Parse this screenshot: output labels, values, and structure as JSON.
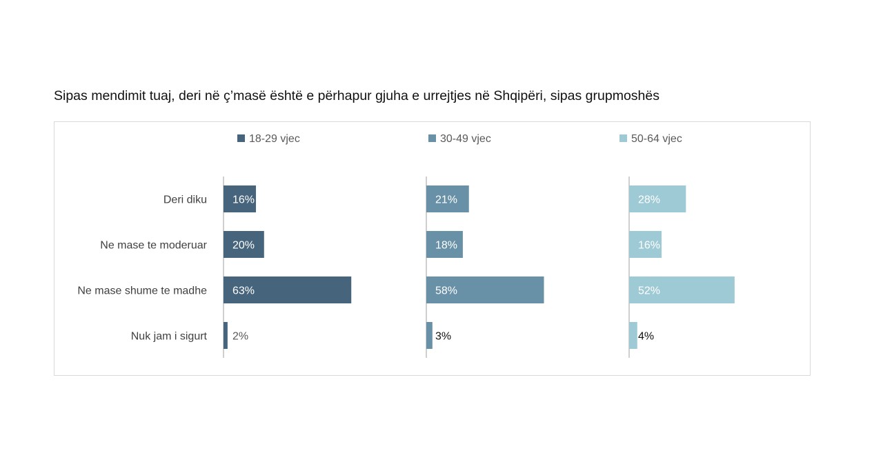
{
  "title": "Sipas mendimit tuaj, deri në ç’masë është e përhapur gjuha e urrejtjes në Shqipëri, sipas grupmoshës",
  "chart_data": {
    "type": "bar",
    "orientation": "horizontal",
    "layout": "small-multiples",
    "categories": [
      "Deri diku",
      "Ne mase te moderuar",
      "Ne mase shume te madhe",
      "Nuk jam i sigurt"
    ],
    "series": [
      {
        "name": "18-29 vjec",
        "values": [
          16,
          20,
          63,
          2
        ],
        "labels": [
          "16%",
          "20%",
          "63%",
          "2%"
        ],
        "color": "#46657c"
      },
      {
        "name": "30-49 vjec",
        "values": [
          21,
          18,
          58,
          3
        ],
        "labels": [
          "21%",
          "18%",
          "58%",
          "3%"
        ],
        "color": "#6890a6"
      },
      {
        "name": "50-64 vjec",
        "values": [
          28,
          16,
          52,
          4
        ],
        "labels": [
          "28%",
          "16%",
          "52%",
          "4%"
        ],
        "color": "#9ecad5"
      }
    ],
    "legend_position": "top",
    "unit": "%",
    "xlim": [
      0,
      100
    ],
    "grid": false
  }
}
